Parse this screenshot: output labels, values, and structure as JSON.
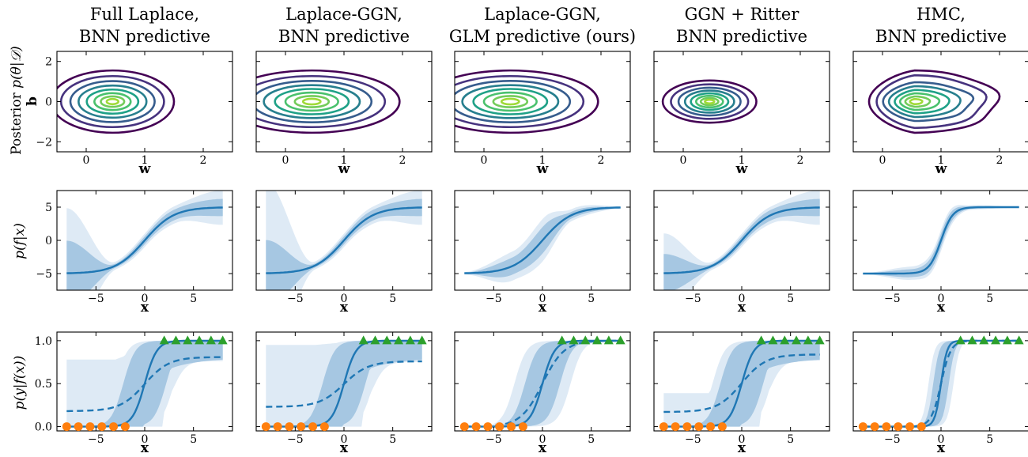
{
  "columns": [
    {
      "title_line1": "Full Laplace,",
      "title_line2": "BNN predictive"
    },
    {
      "title_line1": "Laplace-GGN,",
      "title_line2": "BNN predictive"
    },
    {
      "title_line1": "Laplace-GGN,",
      "title_line2": "GLM predictive (ours)"
    },
    {
      "title_line1": "GGN + Ritter",
      "title_line2": "BNN predictive"
    },
    {
      "title_line1": "HMC,",
      "title_line2": "BNN predictive"
    }
  ],
  "row_labels": {
    "posterior_prefix": "Posterior ",
    "posterior_math": "p(θ|𝒟)",
    "posterior_b": "b",
    "pf": "p(f|x)",
    "py": "p(y|f(x))"
  },
  "axis_labels": {
    "w": "w",
    "x": "x"
  },
  "colors": {
    "mean": "#1f77b4",
    "band_inner": "#a6c7e2",
    "band_outer": "#deeaf5",
    "class0": "#ff7f0e",
    "class1": "#2ca02c",
    "contour_low": "#440154",
    "contour_high": "#a0da39"
  },
  "chart_data": [
    {
      "type": "contour",
      "row": "posterior",
      "xlabel": "w",
      "ylabel": "b",
      "xlim": [
        -0.5,
        2.5
      ],
      "ylim": [
        -2.5,
        2.5
      ],
      "xticks": [
        0,
        1,
        2
      ],
      "yticks": [
        -2,
        0,
        2
      ],
      "panels": [
        {
          "center": [
            0.45,
            0.0
          ],
          "levels": [
            [
              1.05,
              1.55
            ],
            [
              0.88,
              1.27
            ],
            [
              0.72,
              1.02
            ],
            [
              0.58,
              0.8
            ],
            [
              0.44,
              0.6
            ],
            [
              0.31,
              0.42
            ],
            [
              0.2,
              0.26
            ],
            [
              0.1,
              0.13
            ]
          ]
        },
        {
          "center": [
            0.45,
            0.0
          ],
          "levels": [
            [
              1.5,
              1.55
            ],
            [
              1.25,
              1.27
            ],
            [
              1.02,
              1.03
            ],
            [
              0.82,
              0.82
            ],
            [
              0.63,
              0.63
            ],
            [
              0.45,
              0.45
            ],
            [
              0.29,
              0.28
            ],
            [
              0.15,
              0.14
            ]
          ]
        },
        {
          "center": [
            0.45,
            0.0
          ],
          "levels": [
            [
              1.5,
              1.55
            ],
            [
              1.25,
              1.27
            ],
            [
              1.02,
              1.03
            ],
            [
              0.82,
              0.82
            ],
            [
              0.63,
              0.63
            ],
            [
              0.45,
              0.45
            ],
            [
              0.29,
              0.28
            ],
            [
              0.15,
              0.14
            ]
          ]
        },
        {
          "center": [
            0.45,
            0.0
          ],
          "levels": [
            [
              0.8,
              1.05
            ],
            [
              0.66,
              0.86
            ],
            [
              0.53,
              0.69
            ],
            [
              0.42,
              0.55
            ],
            [
              0.32,
              0.41
            ],
            [
              0.23,
              0.29
            ],
            [
              0.15,
              0.18
            ],
            [
              0.08,
              0.09
            ]
          ]
        },
        {
          "center": [
            0.55,
            0.0
          ],
          "levels": [
            [
              0.78,
              1.42
            ],
            [
              0.65,
              1.2
            ],
            [
              0.54,
              0.98
            ],
            [
              0.44,
              0.78
            ],
            [
              0.34,
              0.59
            ],
            [
              0.25,
              0.42
            ],
            [
              0.16,
              0.26
            ],
            [
              0.08,
              0.13
            ]
          ],
          "skew": true
        }
      ]
    },
    {
      "type": "line",
      "row": "p(f|x)",
      "xlabel": "x",
      "ylabel": "p(f|x)",
      "xlim": [
        -9,
        9
      ],
      "ylim": [
        -7.5,
        7.5
      ],
      "xticks": [
        -5,
        0,
        5
      ],
      "yticks": [
        -5,
        0,
        5
      ],
      "mean": "f = 5·tanh(x/3)",
      "panels": [
        {
          "band1_sd": [
            4.9,
            0.3,
            0.6,
            0.8,
            1.3
          ],
          "band2_sd": [
            9.8,
            0.6,
            1.0,
            1.3,
            2.6
          ]
        },
        {
          "band1_sd": [
            5.0,
            0.3,
            0.6,
            0.8,
            1.3
          ],
          "band2_sd": [
            13.8,
            0.6,
            1.0,
            1.3,
            2.6
          ]
        },
        {
          "band1_sd": [
            0.1,
            1.3,
            2.0,
            0.5,
            0.1
          ],
          "band2_sd": [
            0.2,
            2.2,
            3.2,
            0.9,
            0.2
          ]
        },
        {
          "band1_sd": [
            2.9,
            0.3,
            0.6,
            0.8,
            1.3
          ],
          "band2_sd": [
            6.0,
            0.6,
            1.0,
            1.3,
            2.6
          ]
        },
        {
          "band1_sd": [
            0.05,
            0.6,
            1.0,
            0.2,
            0.05
          ],
          "band2_sd": [
            0.1,
            1.0,
            1.6,
            0.35,
            0.1
          ],
          "steep": true
        }
      ]
    },
    {
      "type": "line",
      "row": "p(y|f(x))",
      "xlabel": "x",
      "ylabel": "p(y|f(x))",
      "xlim": [
        -9,
        9
      ],
      "ylim": [
        -0.05,
        1.1
      ],
      "xticks": [
        -5,
        0,
        5
      ],
      "yticks": [
        0.0,
        0.5,
        1.0
      ],
      "class0_points_x": [
        -8,
        -6.8,
        -5.6,
        -4.4,
        -3.2,
        -2
      ],
      "class1_points_x": [
        2,
        3.2,
        4.4,
        5.6,
        6.8,
        8
      ],
      "panels": [
        {
          "dash_left": 0.18,
          "dash_right": 0.81,
          "outer_upper_left": 0.78,
          "outer_lower_left": 0.0
        },
        {
          "dash_left": 0.23,
          "dash_right": 0.76,
          "outer_upper_left": 0.95,
          "outer_lower_left": 0.0
        },
        {
          "dash_left": 0.0,
          "dash_right": 1.0,
          "outer_upper_left": 0.0,
          "outer_lower_left": 0.0
        },
        {
          "dash_left": 0.17,
          "dash_right": 0.84,
          "outer_upper_left": 0.39,
          "outer_lower_left": 0.0
        },
        {
          "dash_left": 0.0,
          "dash_right": 1.0,
          "outer_upper_left": 0.0,
          "outer_lower_left": 0.0
        }
      ]
    }
  ]
}
